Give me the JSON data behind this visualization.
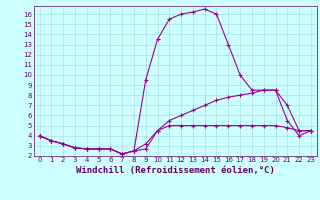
{
  "title": "",
  "xlabel": "Windchill (Refroidissement éolien,°C)",
  "x": [
    0,
    1,
    2,
    3,
    4,
    5,
    6,
    7,
    8,
    9,
    10,
    11,
    12,
    13,
    14,
    15,
    16,
    17,
    18,
    19,
    20,
    21,
    22,
    23
  ],
  "line1": [
    4.0,
    3.5,
    3.2,
    2.8,
    2.7,
    2.7,
    2.7,
    2.2,
    2.5,
    2.7,
    4.5,
    5.0,
    5.0,
    5.0,
    5.0,
    5.0,
    5.0,
    5.0,
    5.0,
    5.0,
    5.0,
    4.8,
    4.5,
    4.5
  ],
  "line2": [
    4.0,
    3.5,
    3.2,
    2.8,
    2.7,
    2.7,
    2.7,
    2.2,
    2.5,
    9.5,
    13.5,
    15.5,
    16.0,
    16.2,
    16.5,
    16.0,
    13.0,
    10.0,
    8.5,
    8.5,
    8.5,
    5.5,
    4.0,
    4.5
  ],
  "line3": [
    4.0,
    3.5,
    3.2,
    2.8,
    2.7,
    2.7,
    2.7,
    2.2,
    2.5,
    3.2,
    4.5,
    5.5,
    6.0,
    6.5,
    7.0,
    7.5,
    7.8,
    8.0,
    8.2,
    8.5,
    8.5,
    7.0,
    4.5,
    4.5
  ],
  "ylim": [
    2,
    16.8
  ],
  "xlim": [
    0,
    23
  ],
  "yticks": [
    2,
    3,
    4,
    5,
    6,
    7,
    8,
    9,
    10,
    11,
    12,
    13,
    14,
    15,
    16
  ],
  "xticks": [
    0,
    1,
    2,
    3,
    4,
    5,
    6,
    7,
    8,
    9,
    10,
    11,
    12,
    13,
    14,
    15,
    16,
    17,
    18,
    19,
    20,
    21,
    22,
    23
  ],
  "line_color": "#990099",
  "bg_color": "#ccffff",
  "grid_color": "#aadddd",
  "label_color": "#660066",
  "xlabel_fontsize": 6.5,
  "tick_fontsize": 5.0
}
